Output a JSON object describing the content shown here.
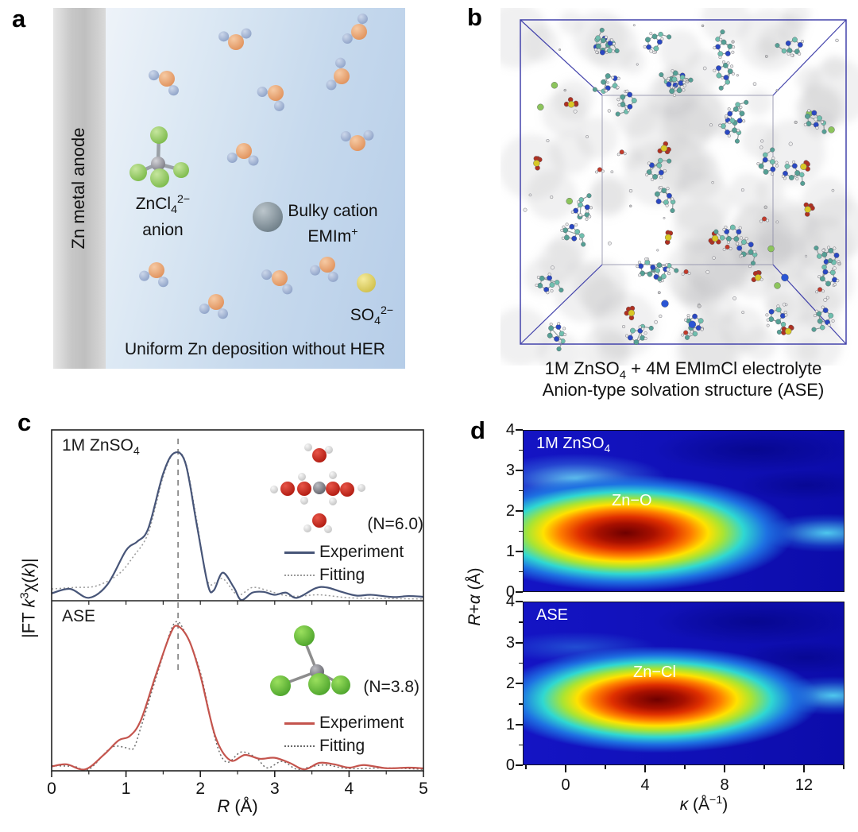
{
  "figure": {
    "panel_labels": {
      "a": "a",
      "b": "b",
      "c": "c",
      "d": "d"
    }
  },
  "panel_a": {
    "anode_label": "Zn metal anode",
    "anion_formula_runs": [
      [
        "",
        "ZnCl"
      ],
      [
        "sub",
        "4"
      ],
      [
        "sup",
        "2−"
      ]
    ],
    "anion_word": "anion",
    "cation_line1": "Bulky cation",
    "cation_formula_runs": [
      [
        "",
        "EMIm"
      ],
      [
        "sup",
        "+"
      ]
    ],
    "sulfate_runs": [
      [
        "",
        "SO"
      ],
      [
        "sub",
        "4"
      ],
      [
        "sup",
        "2−"
      ]
    ],
    "bottom_text": "Uniform Zn deposition without HER",
    "colors": {
      "anion_text": "#5a6548",
      "cation_text": "#2b4a70",
      "sulfate_text": "#a9b23c",
      "anode_text": "#6a6a6a"
    }
  },
  "panel_b": {
    "caption_line1_runs": [
      [
        "",
        "1M ZnSO"
      ],
      [
        "sub",
        "4"
      ],
      [
        "",
        " + 4M EMImCl electrolyte"
      ]
    ],
    "caption_line2": "Anion-type solvation structure (ASE)"
  },
  "chart_data": [
    {
      "type": "line",
      "xlabel": "R (Å)",
      "ylabel": "|FT k³χ(k)|",
      "xlabel_runs": [
        [
          "i",
          "R"
        ],
        [
          "",
          " (Å)"
        ]
      ],
      "ylabel_runs": [
        [
          "",
          "|FT "
        ],
        [
          "i",
          "k"
        ],
        [
          "sup",
          "3"
        ],
        [
          "",
          "χ("
        ],
        [
          "i",
          "k"
        ],
        [
          "",
          ")|"
        ]
      ],
      "xlim": [
        0,
        5
      ],
      "x_ticks": [
        0,
        1,
        2,
        3,
        4,
        5
      ],
      "dashed_line_x": 1.7,
      "subplots": [
        {
          "label": "1M ZnSO4",
          "label_runs": [
            [
              "",
              "1M ZnSO"
            ],
            [
              "sub",
              "4"
            ]
          ],
          "annotation": "(N=6.0)",
          "series": [
            {
              "name": "Experiment",
              "color": "#475578",
              "style": "solid",
              "points": [
                [
                  0,
                  0.05
                ],
                [
                  0.25,
                  0.08
                ],
                [
                  0.5,
                  0.02
                ],
                [
                  0.75,
                  0.11
                ],
                [
                  1.0,
                  0.34
                ],
                [
                  1.15,
                  0.4
                ],
                [
                  1.3,
                  0.49
                ],
                [
                  1.5,
                  0.86
                ],
                [
                  1.65,
                  1.0
                ],
                [
                  1.8,
                  0.93
                ],
                [
                  1.95,
                  0.52
                ],
                [
                  2.1,
                  0.11
                ],
                [
                  2.18,
                  0.07
                ],
                [
                  2.3,
                  0.19
                ],
                [
                  2.45,
                  0.09
                ],
                [
                  2.55,
                  0.005
                ],
                [
                  2.7,
                  0.055
                ],
                [
                  2.85,
                  0.06
                ],
                [
                  3.0,
                  0.04
                ],
                [
                  3.15,
                  0.055
                ],
                [
                  3.3,
                  0.02
                ],
                [
                  3.55,
                  0.085
                ],
                [
                  3.7,
                  0.09
                ],
                [
                  3.9,
                  0.06
                ],
                [
                  4.1,
                  0.035
                ],
                [
                  4.3,
                  0.04
                ],
                [
                  4.6,
                  0.025
                ],
                [
                  4.8,
                  0.032
                ],
                [
                  5.0,
                  0.027
                ]
              ]
            },
            {
              "name": "Fitting",
              "color": "#9a9a9a",
              "style": "dotted",
              "points": [
                [
                  0,
                  0.08
                ],
                [
                  0.3,
                  0.09
                ],
                [
                  0.6,
                  0.1
                ],
                [
                  0.9,
                  0.18
                ],
                [
                  1.1,
                  0.3
                ],
                [
                  1.3,
                  0.46
                ],
                [
                  1.5,
                  0.84
                ],
                [
                  1.65,
                  1.0
                ],
                [
                  1.8,
                  0.94
                ],
                [
                  1.95,
                  0.55
                ],
                [
                  2.1,
                  0.13
                ],
                [
                  2.3,
                  0.15
                ],
                [
                  2.5,
                  0.04
                ],
                [
                  2.7,
                  0.09
                ],
                [
                  2.9,
                  0.07
                ],
                [
                  3.1,
                  0.04
                ],
                [
                  3.3,
                  0.03
                ],
                [
                  3.6,
                  0.04
                ],
                [
                  4.0,
                  0.02
                ],
                [
                  4.5,
                  0.015
                ],
                [
                  5.0,
                  0.012
                ]
              ]
            }
          ]
        },
        {
          "label": "ASE",
          "label_runs": [
            [
              "",
              "ASE"
            ]
          ],
          "annotation": "(N=3.8)",
          "series": [
            {
              "name": "Experiment",
              "color": "#c4544d",
              "style": "solid",
              "points": [
                [
                  0,
                  0.03
                ],
                [
                  0.2,
                  0.045
                ],
                [
                  0.45,
                  0.01
                ],
                [
                  0.7,
                  0.11
                ],
                [
                  0.9,
                  0.21
                ],
                [
                  1.05,
                  0.24
                ],
                [
                  1.2,
                  0.35
                ],
                [
                  1.4,
                  0.66
                ],
                [
                  1.6,
                  0.95
                ],
                [
                  1.7,
                  1.0
                ],
                [
                  1.85,
                  0.9
                ],
                [
                  2.0,
                  0.66
                ],
                [
                  2.2,
                  0.24
                ],
                [
                  2.4,
                  0.073
                ],
                [
                  2.6,
                  0.11
                ],
                [
                  2.8,
                  0.083
                ],
                [
                  3.0,
                  0.09
                ],
                [
                  3.2,
                  0.055
                ],
                [
                  3.4,
                  0.01
                ],
                [
                  3.6,
                  0.055
                ],
                [
                  3.8,
                  0.045
                ],
                [
                  4.0,
                  0.022
                ],
                [
                  4.2,
                  0.04
                ],
                [
                  4.5,
                  0.018
                ],
                [
                  4.8,
                  0.022
                ],
                [
                  5.0,
                  0.017
                ]
              ]
            },
            {
              "name": "Fitting",
              "color": "#6a6a6a",
              "style": "dotted",
              "points": [
                [
                  0,
                  0.035
                ],
                [
                  0.3,
                  0.03
                ],
                [
                  0.5,
                  0.01
                ],
                [
                  0.8,
                  0.16
                ],
                [
                  1.0,
                  0.16
                ],
                [
                  1.1,
                  0.155
                ],
                [
                  1.2,
                  0.3
                ],
                [
                  1.45,
                  0.72
                ],
                [
                  1.65,
                  1.02
                ],
                [
                  1.8,
                  0.95
                ],
                [
                  2.0,
                  0.68
                ],
                [
                  2.2,
                  0.22
                ],
                [
                  2.35,
                  0.06
                ],
                [
                  2.55,
                  0.13
                ],
                [
                  2.75,
                  0.09
                ],
                [
                  2.9,
                  0.02
                ],
                [
                  3.1,
                  0.065
                ],
                [
                  3.3,
                  0.01
                ],
                [
                  3.5,
                  0.03
                ],
                [
                  3.7,
                  0.04
                ],
                [
                  4.0,
                  0.015
                ],
                [
                  4.5,
                  0.02
                ],
                [
                  5.0,
                  0.01
                ]
              ]
            }
          ]
        }
      ]
    },
    {
      "type": "heatmap",
      "label": "1M ZnSO4",
      "label_runs": [
        [
          "",
          "1M ZnSO"
        ],
        [
          "sub",
          "4"
        ]
      ],
      "annotation": "Zn−O",
      "xlabel": "κ (Å⁻¹)",
      "ylabel": "R+α (Å)",
      "xlabel_runs": [
        [
          "i",
          "κ"
        ],
        [
          "",
          " (Å"
        ],
        [
          "sup",
          "−1"
        ],
        [
          "",
          ")"
        ]
      ],
      "ylabel_runs": [
        [
          "i",
          "R"
        ],
        [
          "",
          "+"
        ],
        [
          "i",
          "α"
        ],
        [
          "",
          " (Å)"
        ]
      ],
      "xlim": [
        -2.16,
        14
      ],
      "ylim": [
        0,
        4
      ],
      "x_ticks": [
        0,
        4,
        8,
        12
      ],
      "x_minor_ticks": [
        -2,
        2,
        6,
        10,
        14
      ],
      "y_ticks": [
        4,
        3,
        2,
        1,
        0
      ],
      "y_minor_ticks": [
        0.5,
        1.5,
        2.5,
        3.5
      ],
      "hotspot": {
        "kappa": 3.0,
        "r": 1.45,
        "rx_units": 9.5,
        "ry_units": 1.62
      },
      "secondary_blob": {
        "kappa": 0.5,
        "r": 2.8
      },
      "right_tail": {
        "kappa": 13.2,
        "r": 1.45
      }
    },
    {
      "type": "heatmap",
      "label": "ASE",
      "label_runs": [
        [
          "",
          "ASE"
        ]
      ],
      "annotation": "Zn−Cl",
      "xlabel": "κ (Å⁻¹)",
      "ylabel": "R+α (Å)",
      "xlim": [
        -2.16,
        14
      ],
      "ylim": [
        0,
        4
      ],
      "x_ticks": [
        0,
        4,
        8,
        12
      ],
      "x_minor_ticks": [
        -2,
        2,
        6,
        10,
        14
      ],
      "y_ticks": [
        4,
        3,
        2,
        1,
        0
      ],
      "y_minor_ticks": [
        0.5,
        1.5,
        2.5,
        3.5
      ],
      "hotspot": {
        "kappa": 4.6,
        "r": 1.6,
        "rx_units": 9.2,
        "ry_units": 1.48
      },
      "faint_band": {
        "kappa": 0.5,
        "r": 2.9
      },
      "right_tail": {
        "kappa": 13.5,
        "r": 1.7
      }
    }
  ]
}
